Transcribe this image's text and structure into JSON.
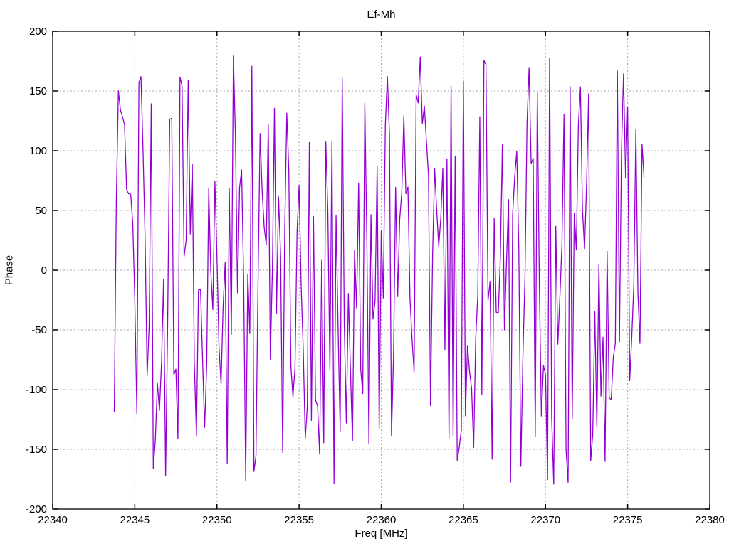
{
  "window": {
    "background": "#ffffff"
  },
  "chart_data": {
    "type": "line",
    "title": "Ef-Mh",
    "xlabel": "Freq [MHz]",
    "ylabel": "Phase",
    "xlim": [
      22340,
      22380
    ],
    "ylim": [
      -200,
      200
    ],
    "xticks": [
      22340,
      22345,
      22350,
      22355,
      22360,
      22365,
      22370,
      22375,
      22380
    ],
    "yticks": [
      -200,
      -150,
      -100,
      -50,
      0,
      50,
      100,
      150,
      200
    ],
    "grid": true,
    "grid_style": "dotted",
    "legend": "none",
    "axis_color": "#000000",
    "grid_color": "#a6a6a6",
    "series": [
      {
        "name": "Ef-Mh phase",
        "color": "#9400d3",
        "style": "lines",
        "description": "Wrapped interferometric phase noise, uniformly scattered between -180 and +180 degrees, rendered as dense near-vertical strokes",
        "x_start": 22343.75,
        "x_end": 22376.0,
        "x_step": 0.125,
        "n_points": 259,
        "y_wrap_range": [
          -180,
          180
        ],
        "seed": 948217345
      }
    ]
  }
}
